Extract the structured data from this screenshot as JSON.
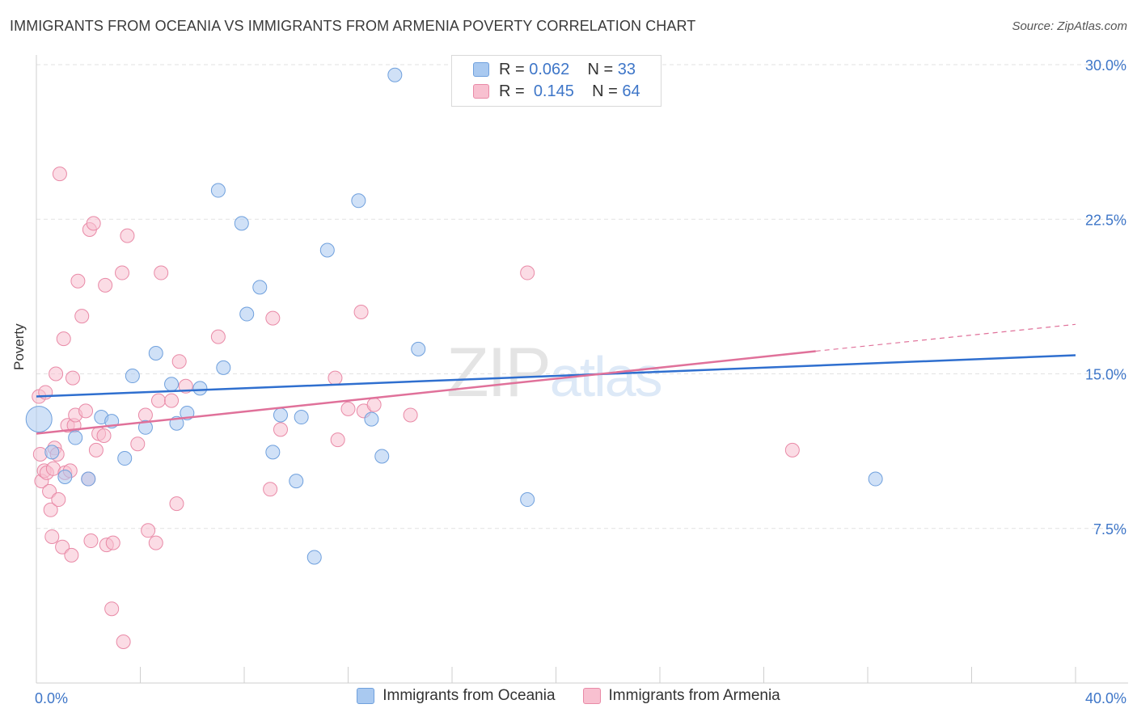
{
  "header": {
    "title": "IMMIGRANTS FROM OCEANIA VS IMMIGRANTS FROM ARMENIA POVERTY CORRELATION CHART",
    "source": "Source: ZipAtlas.com"
  },
  "legend_top": {
    "rows": [
      {
        "r_label": "R =",
        "r_value": "0.062",
        "n_label": "N =",
        "n_value": "33",
        "color": "#a9c9f0",
        "border": "#6fa0dd"
      },
      {
        "r_label": "R =",
        "r_value": "0.145",
        "n_label": "N =",
        "n_value": "64",
        "color": "#f8c0d0",
        "border": "#e98aa7"
      }
    ]
  },
  "watermark": {
    "part1": "ZIP",
    "part2": "atlas"
  },
  "colors": {
    "oceania_fill": "#a9c9f0",
    "oceania_stroke": "#6fa0dd",
    "oceania_line": "#2f6fcf",
    "armenia_fill": "#f8c0d0",
    "armenia_stroke": "#e98aa7",
    "armenia_line": "#e0719a",
    "axis_text": "#3e76c8",
    "grid": "#e2e2e2"
  },
  "chart_data": {
    "type": "scatter",
    "title": "IMMIGRANTS FROM OCEANIA VS IMMIGRANTS FROM ARMENIA POVERTY CORRELATION CHART",
    "xlabel": "",
    "ylabel": "Poverty",
    "xlim": [
      0,
      40
    ],
    "ylim": [
      0,
      30
    ],
    "x_tick_labels": [
      "0.0%",
      "40.0%"
    ],
    "y_ticks": [
      7.5,
      15.0,
      22.5,
      30.0
    ],
    "y_tick_labels": [
      "7.5%",
      "15.0%",
      "22.5%",
      "30.0%"
    ],
    "grid": true,
    "legend_position": "bottom",
    "series": [
      {
        "name": "Immigrants from Oceania",
        "R": 0.062,
        "N": 33,
        "trend": {
          "x": [
            0,
            40
          ],
          "y": [
            13.9,
            15.9
          ]
        },
        "points": [
          {
            "x": 0.1,
            "y": 12.8,
            "big": true
          },
          {
            "x": 0.6,
            "y": 11.2
          },
          {
            "x": 1.1,
            "y": 10.0
          },
          {
            "x": 1.5,
            "y": 11.9
          },
          {
            "x": 2.0,
            "y": 9.9
          },
          {
            "x": 2.5,
            "y": 12.9
          },
          {
            "x": 2.9,
            "y": 12.7
          },
          {
            "x": 3.4,
            "y": 10.9
          },
          {
            "x": 3.7,
            "y": 14.9
          },
          {
            "x": 4.2,
            "y": 12.4
          },
          {
            "x": 4.6,
            "y": 16.0
          },
          {
            "x": 5.2,
            "y": 14.5
          },
          {
            "x": 5.4,
            "y": 12.6
          },
          {
            "x": 5.8,
            "y": 13.1
          },
          {
            "x": 6.3,
            "y": 14.3
          },
          {
            "x": 7.0,
            "y": 23.9
          },
          {
            "x": 7.2,
            "y": 15.3
          },
          {
            "x": 7.9,
            "y": 22.3
          },
          {
            "x": 8.1,
            "y": 17.9
          },
          {
            "x": 8.6,
            "y": 19.2
          },
          {
            "x": 9.1,
            "y": 11.2
          },
          {
            "x": 9.4,
            "y": 13.0
          },
          {
            "x": 10.0,
            "y": 9.8
          },
          {
            "x": 10.2,
            "y": 12.9
          },
          {
            "x": 10.7,
            "y": 6.1
          },
          {
            "x": 11.2,
            "y": 21.0
          },
          {
            "x": 12.4,
            "y": 23.4
          },
          {
            "x": 12.9,
            "y": 12.8
          },
          {
            "x": 13.3,
            "y": 11.0
          },
          {
            "x": 13.8,
            "y": 29.5
          },
          {
            "x": 14.7,
            "y": 16.2
          },
          {
            "x": 18.9,
            "y": 8.9
          },
          {
            "x": 32.3,
            "y": 9.9
          }
        ]
      },
      {
        "name": "Immigrants from Armenia",
        "R": 0.145,
        "N": 64,
        "trend": {
          "x": [
            0,
            30
          ],
          "y": [
            12.1,
            16.1
          ]
        },
        "trend_dashed": {
          "x": [
            30,
            40
          ],
          "y": [
            16.1,
            17.4
          ]
        },
        "points": [
          {
            "x": 0.1,
            "y": 13.9
          },
          {
            "x": 0.15,
            "y": 11.1
          },
          {
            "x": 0.2,
            "y": 9.8
          },
          {
            "x": 0.3,
            "y": 10.3
          },
          {
            "x": 0.35,
            "y": 14.1
          },
          {
            "x": 0.4,
            "y": 10.2
          },
          {
            "x": 0.5,
            "y": 9.3
          },
          {
            "x": 0.55,
            "y": 8.4
          },
          {
            "x": 0.6,
            "y": 7.1
          },
          {
            "x": 0.65,
            "y": 10.4
          },
          {
            "x": 0.7,
            "y": 11.4
          },
          {
            "x": 0.75,
            "y": 15.0
          },
          {
            "x": 0.8,
            "y": 11.1
          },
          {
            "x": 0.85,
            "y": 8.9
          },
          {
            "x": 0.9,
            "y": 24.7
          },
          {
            "x": 1.0,
            "y": 6.6
          },
          {
            "x": 1.05,
            "y": 16.7
          },
          {
            "x": 1.1,
            "y": 10.2
          },
          {
            "x": 1.2,
            "y": 12.5
          },
          {
            "x": 1.35,
            "y": 6.2
          },
          {
            "x": 1.4,
            "y": 14.8
          },
          {
            "x": 1.45,
            "y": 12.5
          },
          {
            "x": 1.5,
            "y": 13.0
          },
          {
            "x": 1.6,
            "y": 19.5
          },
          {
            "x": 1.75,
            "y": 17.8
          },
          {
            "x": 1.9,
            "y": 13.2
          },
          {
            "x": 2.0,
            "y": 9.9
          },
          {
            "x": 2.05,
            "y": 22.0
          },
          {
            "x": 2.1,
            "y": 6.9
          },
          {
            "x": 2.2,
            "y": 22.3
          },
          {
            "x": 2.3,
            "y": 11.3
          },
          {
            "x": 2.4,
            "y": 12.1
          },
          {
            "x": 2.6,
            "y": 12.0
          },
          {
            "x": 2.65,
            "y": 19.3
          },
          {
            "x": 2.7,
            "y": 6.7
          },
          {
            "x": 2.9,
            "y": 3.6
          },
          {
            "x": 2.95,
            "y": 6.8
          },
          {
            "x": 3.3,
            "y": 19.9
          },
          {
            "x": 3.35,
            "y": 2.0
          },
          {
            "x": 3.5,
            "y": 21.7
          },
          {
            "x": 3.9,
            "y": 11.6
          },
          {
            "x": 4.2,
            "y": 13.0
          },
          {
            "x": 4.3,
            "y": 7.4
          },
          {
            "x": 4.6,
            "y": 6.8
          },
          {
            "x": 4.7,
            "y": 13.7
          },
          {
            "x": 4.8,
            "y": 19.9
          },
          {
            "x": 5.2,
            "y": 13.7
          },
          {
            "x": 5.4,
            "y": 8.7
          },
          {
            "x": 5.5,
            "y": 15.6
          },
          {
            "x": 5.75,
            "y": 14.4
          },
          {
            "x": 7.0,
            "y": 16.8
          },
          {
            "x": 9.0,
            "y": 9.4
          },
          {
            "x": 9.1,
            "y": 17.7
          },
          {
            "x": 9.4,
            "y": 12.3
          },
          {
            "x": 11.5,
            "y": 14.8
          },
          {
            "x": 11.6,
            "y": 11.8
          },
          {
            "x": 12.0,
            "y": 13.3
          },
          {
            "x": 12.5,
            "y": 18.0
          },
          {
            "x": 12.6,
            "y": 13.2
          },
          {
            "x": 13.0,
            "y": 13.5
          },
          {
            "x": 14.4,
            "y": 13.0
          },
          {
            "x": 18.9,
            "y": 19.9
          },
          {
            "x": 29.1,
            "y": 11.3
          },
          {
            "x": 1.3,
            "y": 10.3
          }
        ]
      }
    ]
  },
  "bottom_legend": [
    {
      "label": "Immigrants from Oceania"
    },
    {
      "label": "Immigrants from Armenia"
    }
  ]
}
